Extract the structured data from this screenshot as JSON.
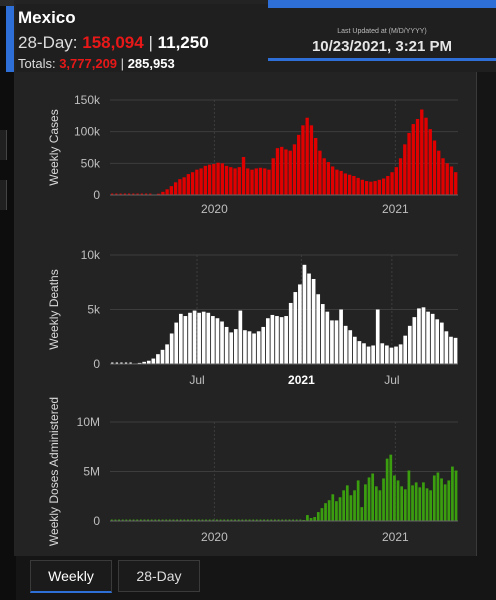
{
  "header": {
    "title": "Mexico",
    "day28_label": "28-Day:",
    "day28_cases": "158,094",
    "day28_deaths": "11,250",
    "totals_label": "Totals:",
    "totals_cases": "3,777,209",
    "totals_deaths": "285,953",
    "separator": "|"
  },
  "updated": {
    "label": "Last Updated at (M/D/YYYY)",
    "time": "10/23/2021, 3:21 PM"
  },
  "tabs": [
    {
      "label": "Weekly",
      "active": true
    },
    {
      "label": "28-Day",
      "active": false
    }
  ],
  "colors": {
    "cases": "#e00000",
    "deaths": "#ffffff",
    "doses": "#3a9e0f",
    "accent": "#2d6fd6"
  },
  "chart_data": [
    {
      "type": "bar",
      "ylabel": "Weekly Cases",
      "yticks": [
        "150k",
        "100k",
        "50k",
        "0"
      ],
      "ytick_values": [
        150000,
        100000,
        50000,
        0
      ],
      "ylim": [
        0,
        150000
      ],
      "xticks": [
        "2020",
        "2021"
      ],
      "xtick_positions": [
        0.3,
        0.82
      ],
      "values": [
        0,
        0,
        0,
        0,
        0,
        0,
        0,
        0,
        0,
        0,
        500,
        2000,
        5000,
        9000,
        14000,
        20000,
        25000,
        28000,
        33000,
        36000,
        40000,
        42000,
        46000,
        48000,
        49000,
        51000,
        50000,
        46000,
        44000,
        42000,
        44000,
        60000,
        42000,
        40000,
        42000,
        43000,
        42000,
        40000,
        58000,
        74000,
        76000,
        72000,
        70000,
        80000,
        95000,
        110000,
        122000,
        110000,
        90000,
        70000,
        58000,
        52000,
        45000,
        40000,
        38000,
        34000,
        32000,
        30000,
        27000,
        24000,
        22000,
        21000,
        22000,
        24000,
        26000,
        30000,
        36000,
        44000,
        58000,
        80000,
        98000,
        112000,
        120000,
        135000,
        122000,
        104000,
        86000,
        70000,
        58000,
        50000,
        45000,
        36000
      ]
    },
    {
      "type": "bar",
      "ylabel": "Weekly Deaths",
      "yticks": [
        "10k",
        "5k",
        "0"
      ],
      "ytick_values": [
        10000,
        5000,
        0
      ],
      "ylim": [
        0,
        10000
      ],
      "xticks": [
        "Jul",
        "2021",
        "Jul"
      ],
      "xtick_positions": [
        0.25,
        0.55,
        0.81
      ],
      "values": [
        0,
        0,
        0,
        0,
        0,
        50,
        100,
        200,
        300,
        500,
        900,
        1300,
        1800,
        2800,
        3800,
        4600,
        4400,
        4700,
        4900,
        4700,
        4800,
        4700,
        4400,
        4200,
        3900,
        3400,
        2900,
        3200,
        4900,
        3100,
        3000,
        2800,
        3000,
        3400,
        4200,
        4500,
        4400,
        4300,
        4400,
        5600,
        6600,
        7300,
        9100,
        8300,
        7800,
        6400,
        5500,
        4800,
        4000,
        4000,
        5000,
        3500,
        3100,
        2500,
        2100,
        1900,
        1600,
        1700,
        5000,
        1900,
        1700,
        1500,
        1600,
        1800,
        2600,
        3500,
        4300,
        5100,
        5200,
        4800,
        4600,
        4100,
        3800,
        3000,
        2500,
        2400
      ]
    },
    {
      "type": "bar",
      "ylabel": "Weekly Doses Administered",
      "yticks": [
        "10M",
        "5M",
        "0"
      ],
      "ytick_values": [
        10000000,
        5000000,
        0
      ],
      "ylim": [
        0,
        10000000
      ],
      "xticks": [
        "2020",
        "2021"
      ],
      "xtick_positions": [
        0.3,
        0.82
      ],
      "values": [
        0,
        0,
        0,
        0,
        0,
        0,
        0,
        0,
        0,
        0,
        0,
        0,
        0,
        0,
        0,
        0,
        0,
        0,
        0,
        0,
        0,
        0,
        0,
        0,
        0,
        0,
        0,
        0,
        0,
        0,
        0,
        0,
        0,
        0,
        0,
        0,
        0,
        0,
        0,
        0,
        0,
        0,
        0,
        0,
        0,
        0,
        0,
        0,
        0,
        0,
        0,
        0,
        0,
        100000,
        600000,
        300000,
        400000,
        900000,
        1300000,
        1800000,
        2100000,
        2700000,
        2000000,
        2400000,
        3100000,
        3600000,
        2600000,
        3100000,
        4100000,
        1400000,
        3700000,
        4400000,
        4800000,
        3500000,
        3100000,
        4300000,
        6300000,
        6700000,
        4600000,
        4100000,
        3500000,
        3200000,
        5100000,
        3600000,
        3900000,
        3400000,
        3900000,
        3300000,
        3100000,
        4600000,
        4900000,
        4300000,
        3700000,
        4100000,
        5500000,
        5100000
      ]
    }
  ]
}
